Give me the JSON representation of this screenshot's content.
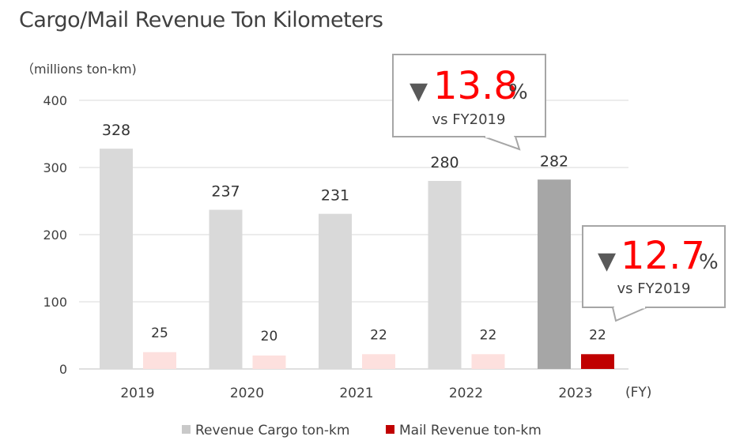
{
  "title": "Cargo/Mail Revenue Ton Kilometers",
  "unit_label": "（millions ton-km)",
  "x_unit": "(FY)",
  "chart_data": {
    "type": "bar",
    "title": "Cargo/Mail Revenue Ton Kilometers",
    "ylabel": "（millions ton-km)",
    "xlabel": "(FY)",
    "ylim": [
      0,
      400
    ],
    "yticks": [
      0,
      100,
      200,
      300,
      400
    ],
    "categories": [
      "2019",
      "2020",
      "2021",
      "2022",
      "2023"
    ],
    "series": [
      {
        "name": "Revenue Cargo ton-km",
        "values": [
          328,
          237,
          231,
          280,
          282
        ],
        "color": "#d9d9d9",
        "highlight_color": "#a6a6a6"
      },
      {
        "name": "Mail Revenue ton-km",
        "values": [
          25,
          20,
          22,
          22,
          22
        ],
        "color": "#fde0de",
        "highlight_color": "#c00000"
      }
    ],
    "highlight_category": "2023",
    "grid": true,
    "legend_position": "bottom"
  },
  "callouts": [
    {
      "arrow": "▼",
      "value": "13.8",
      "unit": "%",
      "sub": "vs FY2019"
    },
    {
      "arrow": "▼",
      "value": "12.7",
      "unit": "%",
      "sub": "vs FY2019"
    }
  ]
}
